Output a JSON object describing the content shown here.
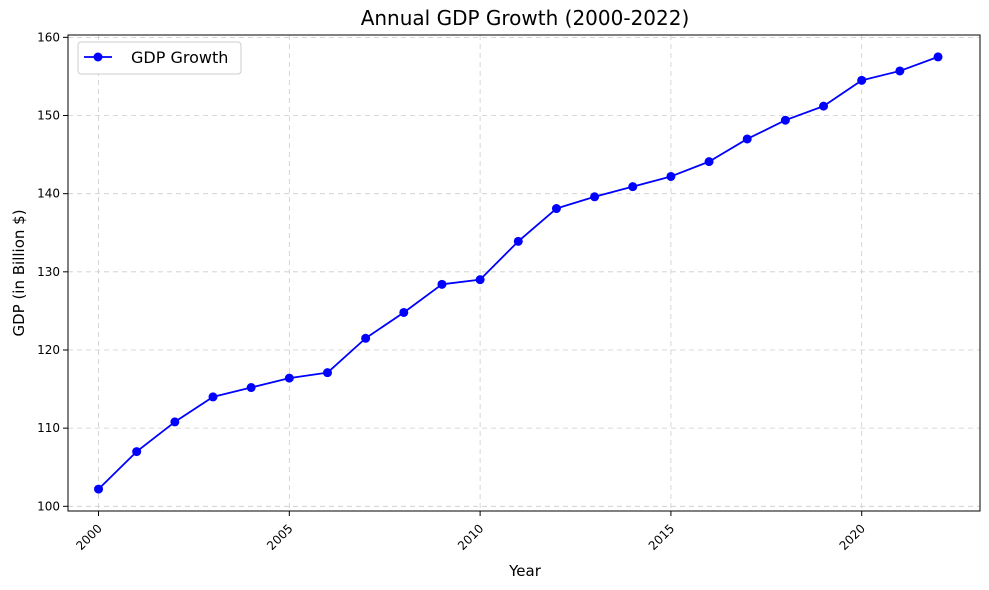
{
  "chart_data": {
    "type": "line",
    "title": "Annual GDP Growth (2000-2022)",
    "xlabel": "Year",
    "ylabel": "GDP (in Billion $)",
    "xlim": [
      1999.2,
      2023.1
    ],
    "ylim": [
      99.4,
      160.3
    ],
    "x_ticks": [
      2000,
      2005,
      2010,
      2015,
      2020
    ],
    "y_ticks": [
      100,
      110,
      120,
      130,
      140,
      150,
      160
    ],
    "grid": true,
    "legend_position": "upper-left",
    "series": [
      {
        "name": "GDP Growth",
        "color": "#0000ff",
        "marker": "circle",
        "x": [
          2000,
          2001,
          2002,
          2003,
          2004,
          2005,
          2006,
          2007,
          2008,
          2009,
          2010,
          2011,
          2012,
          2013,
          2014,
          2015,
          2016,
          2017,
          2018,
          2019,
          2020,
          2021,
          2022
        ],
        "values": [
          102.2,
          107.0,
          110.8,
          114.0,
          115.2,
          116.4,
          117.1,
          121.5,
          124.8,
          128.4,
          129.0,
          133.9,
          138.1,
          139.6,
          140.9,
          142.2,
          144.1,
          147.0,
          149.4,
          151.2,
          154.5,
          155.7,
          157.5
        ]
      }
    ]
  }
}
